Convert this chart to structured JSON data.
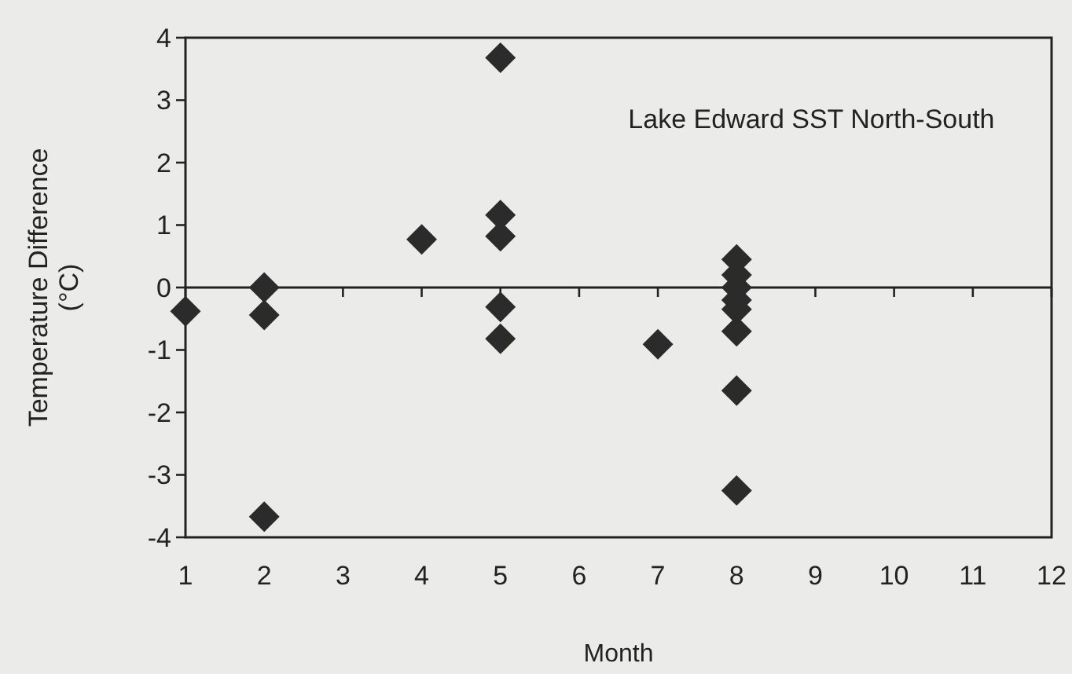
{
  "chart_data": {
    "type": "scatter",
    "title": "Lake Edward SST North-South",
    "xlabel": "Month",
    "ylabel": "Temperature Difference (°C)",
    "marker": "diamond",
    "xlim": [
      1,
      12
    ],
    "ylim": [
      -4,
      4
    ],
    "xticks": [
      1,
      2,
      3,
      4,
      5,
      6,
      7,
      8,
      9,
      10,
      11,
      12
    ],
    "yticks": [
      -4,
      -3,
      -2,
      -1,
      0,
      1,
      2,
      3,
      4
    ],
    "series": [
      {
        "color": "#2b2b2b",
        "x": [
          1,
          2,
          2,
          2,
          4,
          5,
          5,
          5,
          5,
          5,
          7,
          8,
          8,
          8,
          8,
          8,
          8,
          8,
          8
        ],
        "values": [
          -0.38,
          0,
          -0.44,
          -3.67,
          0.77,
          3.68,
          1.16,
          0.82,
          -0.31,
          -0.82,
          -0.91,
          0.45,
          0.2,
          0,
          -0.2,
          -0.35,
          -0.7,
          -1.65,
          -3.25
        ]
      }
    ]
  }
}
